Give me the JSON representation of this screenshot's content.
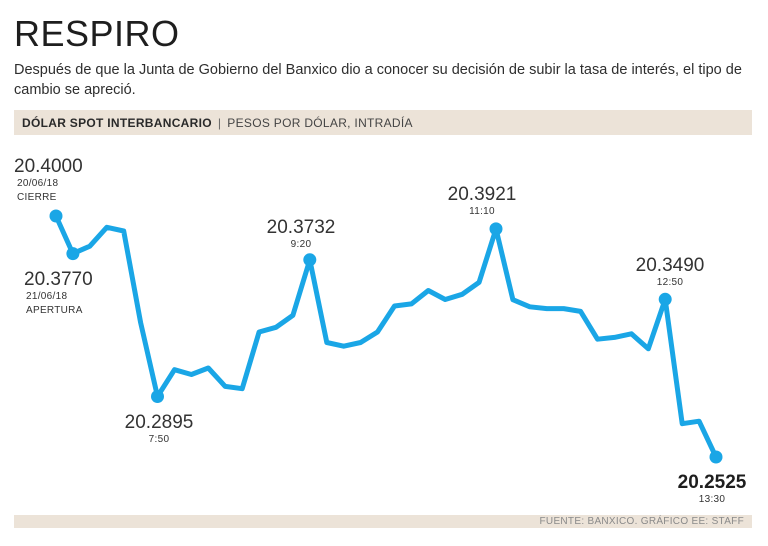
{
  "header": {
    "title": "RESPIRO",
    "subtitle": "Después de que la Junta de Gobierno del Banxico dio a conocer su decisión de subir la tasa de interés, el tipo de cambio se apreció."
  },
  "band": {
    "label": "DÓLAR SPOT INTERBANCARIO",
    "sublabel": "PESOS POR DÓLAR, INTRADÍA"
  },
  "footer": {
    "source": "FUENTE: BANXICO. GRÁFICO EE: STAFF"
  },
  "colors": {
    "line": "#1aa6e6",
    "band": "#ece3d8"
  },
  "chart_data": {
    "type": "line",
    "title": "",
    "xlabel": "",
    "ylabel": "",
    "ylim": [
      20.2525,
      20.4
    ],
    "values": [
      20.4,
      20.377,
      20.3815,
      20.3931,
      20.3908,
      20.3348,
      20.2895,
      20.3059,
      20.303,
      20.307,
      20.2957,
      20.2943,
      20.329,
      20.3319,
      20.3392,
      20.3732,
      20.3226,
      20.3203,
      20.3226,
      20.329,
      20.3449,
      20.3462,
      20.3544,
      20.3489,
      20.3521,
      20.3594,
      20.3921,
      20.3488,
      20.3444,
      20.3433,
      20.3433,
      20.3416,
      20.3246,
      20.3257,
      20.3279,
      20.3187,
      20.349,
      20.2729,
      20.2744,
      20.2525
    ],
    "annotations": [
      {
        "index": 0,
        "value": "20.4000",
        "lines": [
          "20/06/18",
          "CIERRE"
        ]
      },
      {
        "index": 1,
        "value": "20.3770",
        "lines": [
          "21/06/18",
          "APERTURA"
        ]
      },
      {
        "index": 6,
        "value": "20.2895",
        "lines": [
          "7:50"
        ]
      },
      {
        "index": 15,
        "value": "20.3732",
        "lines": [
          "9:20"
        ]
      },
      {
        "index": 26,
        "value": "20.3921",
        "lines": [
          "11:10"
        ]
      },
      {
        "index": 36,
        "value": "20.3490",
        "lines": [
          "12:50"
        ]
      },
      {
        "index": 39,
        "value": "20.2525",
        "lines": [
          "13:30"
        ]
      }
    ]
  }
}
